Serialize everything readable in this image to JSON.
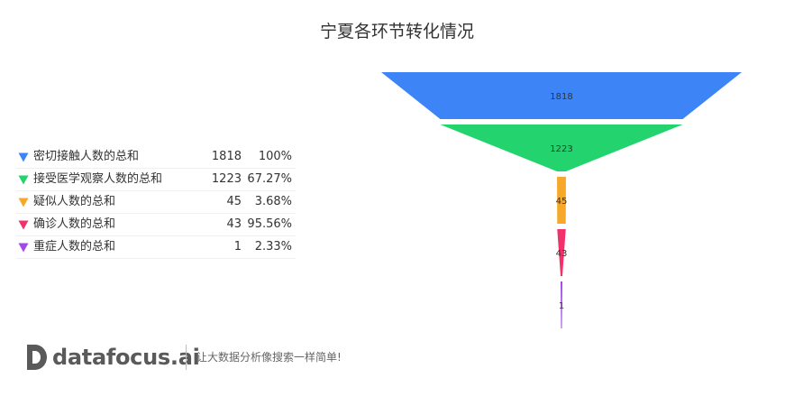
{
  "chart_data": {
    "type": "funnel",
    "title": "宁夏各环节转化情况",
    "categories": [
      "密切接触人数的总和",
      "接受医学观察人数的总和",
      "疑似人数的总和",
      "确诊人数的总和",
      "重症人数的总和"
    ],
    "values": [
      1818,
      1223,
      45,
      43,
      1
    ],
    "percentages": [
      "100%",
      "67.27%",
      "3.68%",
      "95.56%",
      "2.33%"
    ],
    "colors": [
      "#3d85f7",
      "#23d36d",
      "#f7a82b",
      "#f2306a",
      "#a24ae8"
    ],
    "legend_position": "left"
  },
  "branding": {
    "brand": "datafocus.ai",
    "slogan": "让大数据分析像搜索一样简单!"
  }
}
